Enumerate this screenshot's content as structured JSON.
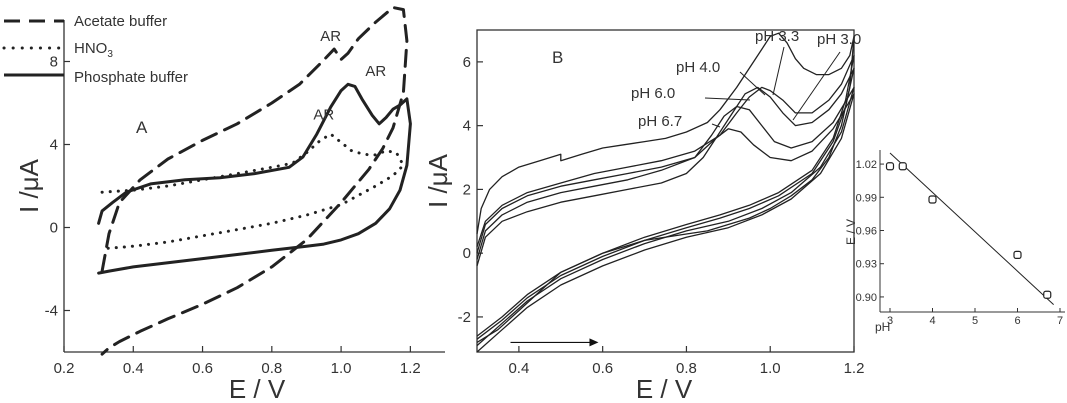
{
  "chart_data": [
    {
      "panel": "A",
      "type": "line",
      "xlabel": "E / V",
      "ylabel": "I /μA",
      "xlim": [
        0.2,
        1.3
      ],
      "ylim": [
        -6,
        10
      ],
      "xticks": [
        0.2,
        0.4,
        0.6,
        0.8,
        1.0,
        1.2
      ],
      "xtick_labels": [
        "0.2",
        "0.4",
        "0.6",
        "0.8",
        "1.0",
        "1.2"
      ],
      "yticks": [
        -4,
        0,
        4,
        8
      ],
      "ytick_labels": [
        "-4",
        "0",
        "4",
        "8"
      ],
      "legend_position": "top-left",
      "legend": [
        {
          "label": "Acetate buffer",
          "style": "dashed"
        },
        {
          "label": "HNO",
          "sub": "3",
          "style": "dotted"
        },
        {
          "label": "Phosphate buffer",
          "style": "solid"
        }
      ],
      "annotations": [
        {
          "text": "AR",
          "x": 0.94,
          "y": 9.0
        },
        {
          "text": "AR",
          "x": 1.07,
          "y": 7.3
        },
        {
          "text": "AR",
          "x": 0.92,
          "y": 5.2
        }
      ],
      "series": [
        {
          "style": "dashed",
          "x": [
            0.31,
            0.33,
            0.36,
            0.42,
            0.5,
            0.6,
            0.7,
            0.8,
            0.88,
            0.94,
            0.98,
            1.0,
            1.02,
            1.05,
            1.1,
            1.15,
            1.18,
            1.19,
            1.18,
            1.15,
            1.12,
            1.08,
            1.0,
            0.9,
            0.8,
            0.7,
            0.6,
            0.5,
            0.42,
            0.36,
            0.33,
            0.31
          ],
          "y": [
            -2.1,
            -0.3,
            1.2,
            2.3,
            3.3,
            4.2,
            5.0,
            6.0,
            6.9,
            7.9,
            8.6,
            8.1,
            8.4,
            9.1,
            9.9,
            10.6,
            10.5,
            9.0,
            6.5,
            4.8,
            3.8,
            2.8,
            1.2,
            -0.6,
            -1.9,
            -2.9,
            -3.7,
            -4.4,
            -5.0,
            -5.5,
            -5.8,
            -6.1
          ]
        },
        {
          "style": "dotted",
          "x": [
            0.31,
            0.4,
            0.5,
            0.6,
            0.7,
            0.8,
            0.86,
            0.9,
            0.94,
            0.97,
            1.0,
            1.03,
            1.05,
            1.08,
            1.1,
            1.13,
            1.16,
            1.18,
            1.15,
            1.1,
            1.0,
            0.9,
            0.8,
            0.7,
            0.6,
            0.5,
            0.4,
            0.33,
            0.31
          ],
          "y": [
            1.7,
            1.8,
            2.0,
            2.3,
            2.6,
            2.9,
            3.1,
            3.6,
            4.2,
            4.5,
            4.1,
            3.7,
            3.6,
            3.5,
            3.5,
            3.7,
            3.6,
            3.0,
            2.5,
            2.0,
            1.1,
            0.6,
            0.2,
            -0.1,
            -0.4,
            -0.7,
            -0.9,
            -1.0,
            -1.0
          ]
        },
        {
          "style": "solid",
          "x": [
            0.3,
            0.31,
            0.34,
            0.38,
            0.45,
            0.55,
            0.65,
            0.75,
            0.85,
            0.89,
            0.93,
            0.97,
            1.0,
            1.02,
            1.04,
            1.06,
            1.09,
            1.11,
            1.13,
            1.15,
            1.17,
            1.19,
            1.2,
            1.19,
            1.17,
            1.14,
            1.1,
            1.05,
            1.0,
            0.95,
            0.9,
            0.8,
            0.7,
            0.6,
            0.5,
            0.4,
            0.33,
            0.3
          ],
          "y": [
            0.2,
            0.8,
            1.2,
            1.7,
            2.1,
            2.3,
            2.4,
            2.6,
            2.9,
            3.4,
            4.5,
            5.8,
            6.6,
            6.9,
            6.8,
            6.2,
            5.4,
            5.0,
            5.3,
            5.7,
            5.9,
            6.2,
            5.0,
            3.0,
            1.8,
            0.9,
            0.2,
            -0.3,
            -0.6,
            -0.8,
            -0.9,
            -1.1,
            -1.3,
            -1.5,
            -1.7,
            -1.9,
            -2.1,
            -2.2
          ]
        }
      ]
    },
    {
      "panel": "B",
      "type": "line",
      "xlabel": "E / V",
      "ylabel": "I /μA",
      "xlim": [
        0.3,
        1.2
      ],
      "ylim": [
        -3.1,
        7
      ],
      "xticks": [
        0.4,
        0.6,
        0.8,
        1.0,
        1.2
      ],
      "xtick_labels": [
        "0.4",
        "0.6",
        "0.8",
        "1.0",
        "1.2"
      ],
      "yticks": [
        -2,
        0,
        2,
        4,
        6
      ],
      "ytick_labels": [
        "-2",
        "0",
        "2",
        "4",
        "6"
      ],
      "scan_arrow": {
        "x_from": 0.38,
        "x_to": 0.59,
        "y": -2.8
      },
      "labels": [
        {
          "text": "pH 3.3"
        },
        {
          "text": "pH 3.0"
        },
        {
          "text": "pH 4.0"
        },
        {
          "text": "pH 6.0"
        },
        {
          "text": "pH 6.7"
        }
      ],
      "series": [
        {
          "name": "pH 3.0",
          "x": [
            0.3,
            0.31,
            0.33,
            0.36,
            0.4,
            0.45,
            0.5,
            0.5,
            0.55,
            0.6,
            0.65,
            0.7,
            0.75,
            0.8,
            0.85,
            0.88,
            0.92,
            0.96,
            1.0,
            1.02,
            1.04,
            1.06,
            1.08,
            1.11,
            1.14,
            1.17,
            1.19,
            1.2,
            1.19,
            1.17,
            1.14,
            1.1,
            1.05,
            1.0,
            0.95,
            0.9,
            0.85,
            0.8,
            0.7,
            0.6,
            0.5,
            0.45,
            0.4,
            0.35,
            0.3
          ],
          "y": [
            0.6,
            1.4,
            2.0,
            2.4,
            2.7,
            2.9,
            3.1,
            2.9,
            3.1,
            3.3,
            3.4,
            3.5,
            3.6,
            3.8,
            4.1,
            4.5,
            5.2,
            6.0,
            6.8,
            6.9,
            6.6,
            6.1,
            5.8,
            5.6,
            5.6,
            5.8,
            6.2,
            6.8,
            5.2,
            4.0,
            3.0,
            2.3,
            1.8,
            1.4,
            1.1,
            0.9,
            0.7,
            0.6,
            0.4,
            0.0,
            -0.6,
            -1.2,
            -1.8,
            -2.4,
            -2.8
          ]
        },
        {
          "name": "pH 3.3",
          "x": [
            0.3,
            0.32,
            0.36,
            0.42,
            0.5,
            0.58,
            0.66,
            0.74,
            0.82,
            0.88,
            0.92,
            0.95,
            0.98,
            1.0,
            1.03,
            1.06,
            1.1,
            1.14,
            1.17,
            1.2,
            1.18,
            1.15,
            1.1,
            1.02,
            0.95,
            0.88,
            0.8,
            0.7,
            0.6,
            0.5,
            0.42,
            0.36,
            0.3
          ],
          "y": [
            0.2,
            1.0,
            1.5,
            1.9,
            2.2,
            2.5,
            2.7,
            2.9,
            3.2,
            3.7,
            4.4,
            4.9,
            5.2,
            5.1,
            4.8,
            4.4,
            4.4,
            4.8,
            5.3,
            6.2,
            4.8,
            3.6,
            2.6,
            1.9,
            1.5,
            1.2,
            0.9,
            0.5,
            0.0,
            -0.6,
            -1.3,
            -2.0,
            -2.6
          ]
        },
        {
          "name": "pH 4.0",
          "x": [
            0.3,
            0.32,
            0.36,
            0.42,
            0.5,
            0.58,
            0.66,
            0.74,
            0.82,
            0.87,
            0.91,
            0.94,
            0.97,
            1.0,
            1.03,
            1.06,
            1.1,
            1.14,
            1.17,
            1.2,
            1.18,
            1.15,
            1.1,
            1.02,
            0.95,
            0.88,
            0.8,
            0.7,
            0.6,
            0.5,
            0.42,
            0.36,
            0.3
          ],
          "y": [
            0.0,
            0.9,
            1.4,
            1.8,
            2.1,
            2.3,
            2.5,
            2.7,
            3.0,
            3.6,
            4.4,
            5.0,
            5.2,
            4.9,
            4.4,
            4.0,
            4.1,
            4.5,
            5.0,
            5.8,
            4.6,
            3.5,
            2.5,
            1.8,
            1.4,
            1.1,
            0.8,
            0.4,
            -0.1,
            -0.7,
            -1.4,
            -2.1,
            -2.7
          ]
        },
        {
          "name": "pH 6.0",
          "x": [
            0.3,
            0.32,
            0.36,
            0.42,
            0.5,
            0.58,
            0.66,
            0.74,
            0.82,
            0.86,
            0.89,
            0.92,
            0.95,
            0.98,
            1.01,
            1.05,
            1.1,
            1.15,
            1.2,
            1.17,
            1.12,
            1.05,
            0.98,
            0.9,
            0.8,
            0.7,
            0.6,
            0.5,
            0.42,
            0.36,
            0.3
          ],
          "y": [
            -0.2,
            0.7,
            1.2,
            1.6,
            1.9,
            2.1,
            2.3,
            2.6,
            3.0,
            3.7,
            4.3,
            4.6,
            4.5,
            4.0,
            3.5,
            3.3,
            3.5,
            4.1,
            5.2,
            3.8,
            2.7,
            1.9,
            1.4,
            1.0,
            0.7,
            0.3,
            -0.2,
            -0.8,
            -1.5,
            -2.2,
            -2.9
          ]
        },
        {
          "name": "pH 6.7",
          "x": [
            0.3,
            0.32,
            0.36,
            0.42,
            0.5,
            0.58,
            0.66,
            0.74,
            0.8,
            0.84,
            0.87,
            0.9,
            0.93,
            0.96,
            1.0,
            1.05,
            1.1,
            1.15,
            1.2,
            1.17,
            1.12,
            1.05,
            0.98,
            0.9,
            0.8,
            0.7,
            0.6,
            0.5,
            0.42,
            0.36,
            0.3
          ],
          "y": [
            -0.4,
            0.5,
            1.0,
            1.3,
            1.6,
            1.8,
            2.0,
            2.2,
            2.5,
            3.0,
            3.6,
            3.9,
            3.8,
            3.4,
            3.0,
            2.9,
            3.2,
            3.9,
            5.0,
            3.6,
            2.5,
            1.7,
            1.2,
            0.8,
            0.5,
            0.1,
            -0.4,
            -1.0,
            -1.7,
            -2.4,
            -3.1
          ]
        }
      ]
    },
    {
      "panel": "inset",
      "type": "scatter",
      "xlabel": "pH",
      "ylabel": "E / V",
      "xlim": [
        3,
        7
      ],
      "ylim": [
        0.89,
        1.03
      ],
      "xticks": [
        3,
        4,
        5,
        6,
        7
      ],
      "xtick_labels": [
        "3",
        "4",
        "5",
        "6",
        "7"
      ],
      "yticks": [
        0.9,
        0.93,
        0.96,
        0.99,
        1.02
      ],
      "ytick_labels": [
        "0.90",
        "0.93",
        "0.96",
        "0.99",
        "1.02"
      ],
      "points": [
        {
          "x": 3.0,
          "y": 1.018
        },
        {
          "x": 3.3,
          "y": 1.018
        },
        {
          "x": 4.0,
          "y": 0.988
        },
        {
          "x": 6.0,
          "y": 0.938
        },
        {
          "x": 6.7,
          "y": 0.902
        }
      ],
      "fit_line": {
        "x": [
          3.0,
          6.85
        ],
        "y": [
          1.03,
          0.893
        ]
      }
    }
  ]
}
